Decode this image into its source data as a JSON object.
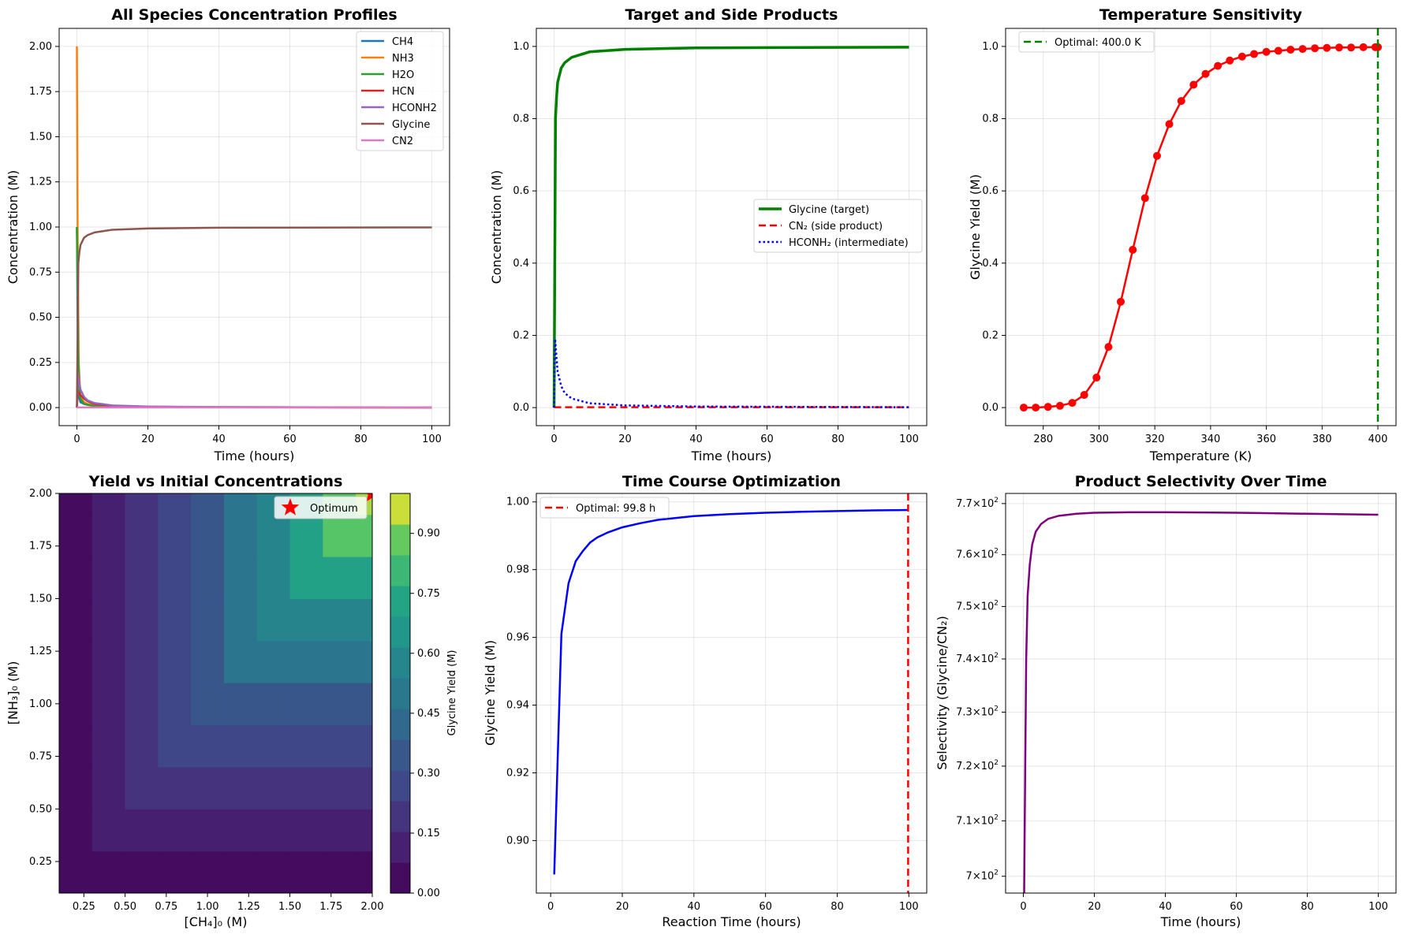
{
  "colors": {
    "CH4": "#1f77b4",
    "NH3": "#ff7f0e",
    "H2O": "#2ca02c",
    "HCN": "#d62728",
    "HCONH2": "#9467bd",
    "Glycine": "#8c564b",
    "CN2": "#e377c2",
    "green": "#008000",
    "red": "#ff0000",
    "blue": "#0000ff",
    "purple": "#800080"
  },
  "chart_data": [
    {
      "id": "species",
      "type": "line",
      "title": "All Species Concentration Profiles",
      "xlabel": "Time (hours)",
      "ylabel": "Concentration (M)",
      "xlim": [
        -5,
        105
      ],
      "ylim": [
        -0.1,
        2.1
      ],
      "xticks": [
        0,
        20,
        40,
        60,
        80,
        100
      ],
      "yticks": [
        0.0,
        0.25,
        0.5,
        0.75,
        1.0,
        1.25,
        1.5,
        1.75,
        2.0
      ],
      "ytick_labels": [
        "0.00",
        "0.25",
        "0.50",
        "0.75",
        "1.00",
        "1.25",
        "1.50",
        "1.75",
        "2.00"
      ],
      "legend": [
        "CH4",
        "NH3",
        "H2O",
        "HCN",
        "HCONH2",
        "Glycine",
        "CN2"
      ],
      "legend_position": "top-right",
      "series": [
        {
          "name": "CH4",
          "color": "#1f77b4",
          "x": [
            0,
            0.3,
            0.6,
            1,
            2,
            3,
            5,
            10,
            20,
            40,
            100
          ],
          "y": [
            1.0,
            0.2,
            0.06,
            0.03,
            0.02,
            0.015,
            0.01,
            0.006,
            0.003,
            0.0015,
            0.0006
          ]
        },
        {
          "name": "NH3",
          "color": "#ff7f0e",
          "x": [
            0,
            0.2,
            0.5,
            1,
            2,
            3,
            5,
            10,
            20,
            40,
            100
          ],
          "y": [
            2.0,
            1.0,
            0.25,
            0.06,
            0.03,
            0.02,
            0.015,
            0.008,
            0.004,
            0.002,
            0.0008
          ]
        },
        {
          "name": "H2O",
          "color": "#2ca02c",
          "x": [
            0,
            0.2,
            0.4,
            0.7,
            1,
            2,
            5,
            10,
            100
          ],
          "y": [
            1.0,
            0.7,
            0.3,
            0.1,
            0.05,
            0.02,
            0.008,
            0.003,
            0.0003
          ]
        },
        {
          "name": "HCN",
          "color": "#d62728",
          "x": [
            0,
            0.3,
            0.6,
            1,
            2,
            3,
            5,
            10,
            20,
            40,
            100
          ],
          "y": [
            0,
            0.09,
            0.08,
            0.07,
            0.05,
            0.035,
            0.02,
            0.01,
            0.005,
            0.002,
            0.0008
          ]
        },
        {
          "name": "HCONH2",
          "color": "#9467bd",
          "x": [
            0,
            0.3,
            0.6,
            1,
            2,
            3,
            5,
            10,
            20,
            40,
            100
          ],
          "y": [
            0,
            0.19,
            0.15,
            0.1,
            0.06,
            0.04,
            0.025,
            0.012,
            0.006,
            0.003,
            0.001
          ]
        },
        {
          "name": "Glycine",
          "color": "#8c564b",
          "x": [
            0,
            0.4,
            0.7,
            1,
            1.5,
            2,
            3,
            5,
            10,
            20,
            40,
            100
          ],
          "y": [
            0,
            0.8,
            0.86,
            0.9,
            0.92,
            0.94,
            0.955,
            0.97,
            0.985,
            0.992,
            0.996,
            0.998
          ]
        },
        {
          "name": "CN2",
          "color": "#e377c2",
          "x": [
            0,
            100
          ],
          "y": [
            0.001,
            0.001
          ]
        }
      ]
    },
    {
      "id": "target",
      "type": "line",
      "title": "Target and Side Products",
      "xlabel": "Time (hours)",
      "ylabel": "Concentration (M)",
      "xlim": [
        -5,
        105
      ],
      "ylim": [
        -0.05,
        1.05
      ],
      "xticks": [
        0,
        20,
        40,
        60,
        80,
        100
      ],
      "yticks": [
        0.0,
        0.2,
        0.4,
        0.6,
        0.8,
        1.0
      ],
      "ytick_labels": [
        "0.0",
        "0.2",
        "0.4",
        "0.6",
        "0.8",
        "1.0"
      ],
      "legend": [
        "Glycine (target)",
        "CN₂ (side product)",
        "HCONH₂ (intermediate)"
      ],
      "legend_position": "center-right",
      "series": [
        {
          "name": "Glycine (target)",
          "color": "#008000",
          "dash": "",
          "width": 3.5,
          "x": [
            0,
            0.4,
            0.7,
            1,
            1.5,
            2,
            3,
            5,
            10,
            20,
            40,
            100
          ],
          "y": [
            0,
            0.8,
            0.86,
            0.9,
            0.92,
            0.94,
            0.955,
            0.97,
            0.985,
            0.992,
            0.996,
            0.998
          ]
        },
        {
          "name": "CN₂ (side product)",
          "color": "#ff0000",
          "dash": "9,5",
          "width": 2.5,
          "x": [
            0,
            100
          ],
          "y": [
            0.001,
            0.001
          ]
        },
        {
          "name": "HCONH₂ (intermediate)",
          "color": "#0000ff",
          "dash": "2.5,3",
          "width": 2.5,
          "x": [
            0,
            0.3,
            0.6,
            1,
            2,
            3,
            5,
            10,
            20,
            40,
            100
          ],
          "y": [
            0,
            0.19,
            0.15,
            0.1,
            0.06,
            0.04,
            0.025,
            0.012,
            0.006,
            0.003,
            0.001
          ]
        }
      ]
    },
    {
      "id": "temperature",
      "type": "line",
      "title": "Temperature Sensitivity",
      "xlabel": "Temperature (K)",
      "ylabel": "Glycine Yield (M)",
      "xlim": [
        266.5,
        406.5
      ],
      "ylim": [
        -0.05,
        1.05
      ],
      "xticks": [
        280,
        300,
        320,
        340,
        360,
        380,
        400
      ],
      "yticks": [
        0.0,
        0.2,
        0.4,
        0.6,
        0.8,
        1.0
      ],
      "ytick_labels": [
        "0.0",
        "0.2",
        "0.4",
        "0.6",
        "0.8",
        "1.0"
      ],
      "x": [
        273,
        277.3,
        281.7,
        286,
        290.4,
        294.7,
        299.1,
        303.4,
        307.8,
        312.1,
        316.5,
        320.8,
        325.2,
        329.5,
        333.9,
        338.2,
        342.6,
        346.9,
        351.3,
        355.6,
        360,
        364.3,
        368.7,
        373,
        377.4,
        381.7,
        386.1,
        390.4,
        394.8,
        399.1,
        400
      ],
      "values": [
        0.0,
        0.0,
        0.002,
        0.005,
        0.013,
        0.035,
        0.083,
        0.168,
        0.293,
        0.437,
        0.58,
        0.697,
        0.785,
        0.849,
        0.894,
        0.924,
        0.946,
        0.961,
        0.972,
        0.979,
        0.985,
        0.988,
        0.991,
        0.993,
        0.995,
        0.996,
        0.997,
        0.997,
        0.998,
        0.998,
        0.998
      ],
      "optimal_x": 400.0,
      "legend": [
        "Optimal: 400.0 K"
      ],
      "legend_position": "top-left"
    },
    {
      "id": "contour",
      "type": "heatmap",
      "title": "Yield vs Initial Concentrations",
      "xlabel": "[CH₄]₀ (M)",
      "ylabel": "[NH₃]₀ (M)",
      "xlim": [
        0.1,
        2.0
      ],
      "ylim": [
        0.1,
        2.0
      ],
      "xticks": [
        0.25,
        0.5,
        0.75,
        1.0,
        1.25,
        1.5,
        1.75,
        2.0
      ],
      "yticks": [
        0.25,
        0.5,
        0.75,
        1.0,
        1.25,
        1.5,
        1.75,
        2.0
      ],
      "tick_labels": [
        "0.25",
        "0.50",
        "0.75",
        "1.00",
        "1.25",
        "1.50",
        "1.75",
        "2.00"
      ],
      "grid_axis": [
        0.1,
        0.3,
        0.5,
        0.7,
        0.9,
        1.1,
        1.3,
        1.5,
        1.7,
        1.9,
        2.0
      ],
      "colorbar_label": "Glycine Yield (M)",
      "colorbar_ticks": [
        "0.00",
        "0.15",
        "0.30",
        "0.45",
        "0.60",
        "0.75",
        "0.90"
      ],
      "colorbar_max": 1.0,
      "optimum": {
        "x": 2.0,
        "y": 2.0
      },
      "legend": [
        "Optimum"
      ],
      "legend_position": "top-right"
    },
    {
      "id": "timecourse",
      "type": "line",
      "title": "Time Course Optimization",
      "xlabel": "Reaction Time (hours)",
      "ylabel": "Glycine Yield (M)",
      "xlim": [
        -4,
        105
      ],
      "ylim": [
        0.8845,
        1.0025
      ],
      "xticks": [
        0,
        20,
        40,
        60,
        80,
        100
      ],
      "yticks": [
        0.9,
        0.92,
        0.94,
        0.96,
        0.98,
        1.0
      ],
      "ytick_labels": [
        "0.90",
        "0.92",
        "0.94",
        "0.96",
        "0.98",
        "1.00"
      ],
      "x": [
        1,
        3,
        5,
        7,
        9,
        11,
        13,
        16,
        20,
        25,
        30,
        40,
        50,
        60,
        70,
        80,
        90,
        100
      ],
      "values": [
        0.89,
        0.961,
        0.976,
        0.9825,
        0.9855,
        0.988,
        0.9895,
        0.991,
        0.9925,
        0.9937,
        0.9947,
        0.9958,
        0.9964,
        0.9968,
        0.9971,
        0.9973,
        0.9975,
        0.9976
      ],
      "optimal_x": 99.8,
      "legend": [
        "Optimal: 99.8 h"
      ],
      "legend_position": "top-left"
    },
    {
      "id": "selectivity",
      "type": "line",
      "title": "Product Selectivity Over Time",
      "xlabel": "Time (hours)",
      "ylabel": "Selectivity (Glycine/CN₂)",
      "yscale": "log",
      "xlim": [
        -5,
        105
      ],
      "ylim": [
        697,
        772
      ],
      "xticks": [
        0,
        20,
        40,
        60,
        80,
        100
      ],
      "yticks": [
        700,
        710,
        720,
        730,
        740,
        750,
        760,
        770
      ],
      "ytick_mantissa": [
        "7",
        "7.1",
        "7.2",
        "7.3",
        "7.4",
        "7.5",
        "7.6",
        "7.7"
      ],
      "ytick_exponent": "2",
      "x": [
        0.2,
        0.5,
        0.8,
        1.2,
        1.8,
        2.5,
        3.5,
        5,
        7,
        10,
        15,
        20,
        30,
        40,
        50,
        60,
        70,
        80,
        90,
        100
      ],
      "values": [
        695,
        718,
        740,
        752,
        758,
        762,
        764.5,
        766,
        767,
        767.6,
        768,
        768.2,
        768.3,
        768.3,
        768.25,
        768.2,
        768.1,
        768.0,
        767.9,
        767.8
      ]
    }
  ]
}
